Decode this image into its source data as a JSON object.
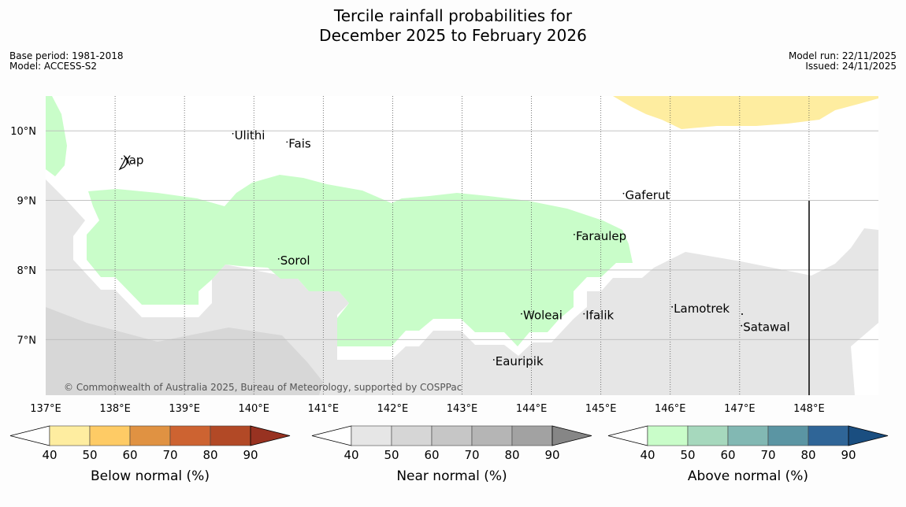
{
  "title": {
    "line1": "Tercile rainfall probabilities for",
    "line2": "December 2025 to February 2026"
  },
  "meta": {
    "base_period": "Base period: 1981-2018",
    "model": "Model: ACCESS-S2",
    "model_run": "Model run: 22/11/2025",
    "issued": "Issued: 24/11/2025"
  },
  "map": {
    "lon_ticks": [
      "137°E",
      "138°E",
      "139°E",
      "140°E",
      "141°E",
      "142°E",
      "143°E",
      "144°E",
      "145°E",
      "146°E",
      "147°E",
      "148°E"
    ],
    "lat_ticks": [
      "10°N",
      "9°N",
      "8°N",
      "7°N"
    ],
    "places": [
      {
        "name": "Yap"
      },
      {
        "name": "Ulithi"
      },
      {
        "name": "Fais"
      },
      {
        "name": "Gaferut"
      },
      {
        "name": "Faraulep"
      },
      {
        "name": "Sorol"
      },
      {
        "name": "Lamotrek"
      },
      {
        "name": "Woleai"
      },
      {
        "name": "Ifalik"
      },
      {
        "name": "Satawal"
      },
      {
        "name": "Eauripik"
      }
    ],
    "copyright": "© Commonwealth of Australia 2025, Bureau of Meteorology, supported by COSPPac"
  },
  "legends": [
    {
      "label": "Below normal (%)",
      "ticks": [
        "40",
        "50",
        "60",
        "70",
        "80",
        "90"
      ],
      "colors": [
        "#ffffff",
        "#feeda0",
        "#fecb65",
        "#e09242",
        "#cd6331",
        "#b24926",
        "#983221"
      ]
    },
    {
      "label": "Near normal (%)",
      "ticks": [
        "40",
        "50",
        "60",
        "70",
        "80",
        "90"
      ],
      "colors": [
        "#ffffff",
        "#e6e6e6",
        "#d6d6d6",
        "#c6c6c6",
        "#b5b5b5",
        "#a2a2a2",
        "#868686"
      ]
    },
    {
      "label": "Above normal (%)",
      "ticks": [
        "40",
        "50",
        "60",
        "70",
        "80",
        "90"
      ],
      "colors": [
        "#ffffff",
        "#c9fdc9",
        "#a6d8bd",
        "#82b8b3",
        "#5b95a3",
        "#2f6597",
        "#1a4e80"
      ]
    }
  ]
}
